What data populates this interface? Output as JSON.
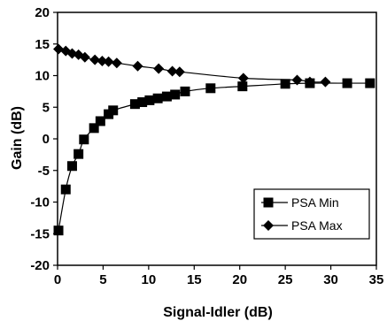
{
  "chart_data": {
    "type": "scatter",
    "title": "",
    "xlabel": "Signal-Idler (dB)",
    "ylabel": "Gain (dB)",
    "xlim": [
      0,
      35
    ],
    "ylim": [
      -20,
      20
    ],
    "xticks": [
      "0",
      "5",
      "10",
      "15",
      "20",
      "25",
      "30",
      "35"
    ],
    "yticks": [
      "-20",
      "-15",
      "-10",
      "-5",
      "0",
      "5",
      "10",
      "15",
      "20"
    ],
    "grid": false,
    "legend_position": "bottom-right",
    "series": [
      {
        "name": "PSA Min",
        "marker": "square",
        "color": "#000000",
        "points": [
          [
            0.1,
            -14.5
          ],
          [
            0.9,
            -8.0
          ],
          [
            1.6,
            -4.3
          ],
          [
            2.3,
            -2.4
          ],
          [
            2.9,
            -0.1
          ],
          [
            4.0,
            1.7
          ],
          [
            4.7,
            2.8
          ],
          [
            5.6,
            3.9
          ],
          [
            6.1,
            4.5
          ],
          [
            8.5,
            5.5
          ],
          [
            9.3,
            5.8
          ],
          [
            10.1,
            6.1
          ],
          [
            11.0,
            6.4
          ],
          [
            12.0,
            6.7
          ],
          [
            12.9,
            7.0
          ],
          [
            14.0,
            7.5
          ],
          [
            16.8,
            8.0
          ],
          [
            20.3,
            8.3
          ],
          [
            25.0,
            8.7
          ],
          [
            27.7,
            8.8
          ],
          [
            31.8,
            8.8
          ],
          [
            34.3,
            8.8
          ]
        ]
      },
      {
        "name": "PSA Max",
        "marker": "diamond",
        "color": "#000000",
        "points": [
          [
            0.1,
            14.2
          ],
          [
            0.9,
            13.9
          ],
          [
            1.6,
            13.5
          ],
          [
            2.3,
            13.3
          ],
          [
            3.0,
            12.9
          ],
          [
            4.1,
            12.5
          ],
          [
            4.9,
            12.3
          ],
          [
            5.6,
            12.2
          ],
          [
            6.5,
            12.0
          ],
          [
            8.8,
            11.5
          ],
          [
            11.1,
            11.1
          ],
          [
            12.6,
            10.7
          ],
          [
            13.4,
            10.6
          ],
          [
            20.4,
            9.6
          ],
          [
            26.3,
            9.3
          ],
          [
            27.7,
            9.0
          ],
          [
            29.4,
            9.0
          ]
        ]
      }
    ]
  }
}
